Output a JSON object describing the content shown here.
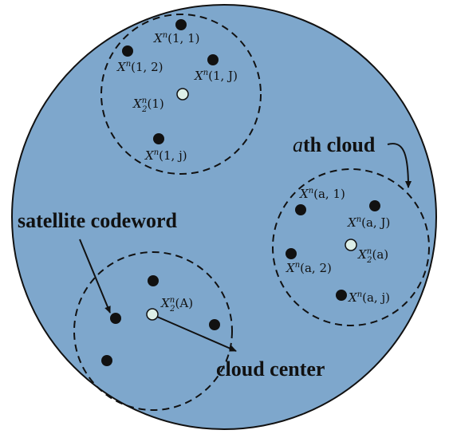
{
  "colors": {
    "background": "#7ea7cc",
    "outline": "#111111",
    "point": "#111111",
    "center_fill": "#dcefe8"
  },
  "clouds": {
    "cloud1": {
      "points": [
        "X^n(1, 1)",
        "X^n(1, 2)",
        "X^n(1, J)",
        "X^n(1, j)"
      ],
      "center": "X^n_2(1)"
    },
    "cloud_a": {
      "title_italic": "a",
      "title_rest": "th cloud",
      "points": [
        "X^n(a, 1)",
        "X^n(a, J)",
        "X^n(a, 2)",
        "X^n(a, j)"
      ],
      "center": "X^n_2(a)"
    },
    "cloud_A": {
      "center": "X^n_2(A)"
    }
  },
  "labels": {
    "satellite": "satellite codeword",
    "cloud_center": "cloud center"
  },
  "icons": {
    "codeword": "filled-circle-icon",
    "center": "hollow-circle-icon",
    "arrow": "arrow-icon"
  }
}
